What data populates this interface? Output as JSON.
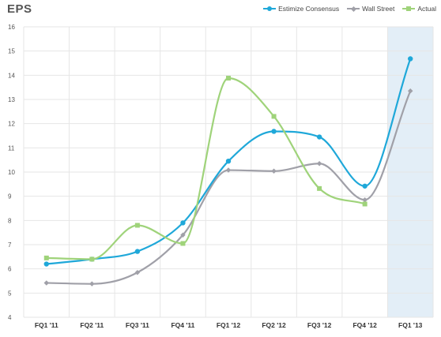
{
  "chart_data": {
    "type": "line",
    "title": "EPS",
    "categories": [
      "FQ1 '11",
      "FQ2 '11",
      "FQ3 '11",
      "FQ4 '11",
      "FQ1 '12",
      "FQ2 '12",
      "FQ3 '12",
      "FQ4 '12",
      "FQ1 '13"
    ],
    "ylim": [
      4,
      16
    ],
    "yticks": [
      4,
      5,
      6,
      7,
      8,
      9,
      10,
      11,
      12,
      13,
      14,
      15,
      16
    ],
    "grid": true,
    "legend_position": "top-right",
    "highlighted_category": "FQ1 '13",
    "series": [
      {
        "name": "Estimize Consensus",
        "color": "#1fa8d9",
        "marker": "circle",
        "values": [
          6.2,
          6.4,
          6.72,
          7.9,
          10.45,
          11.68,
          11.45,
          9.42,
          14.68
        ]
      },
      {
        "name": "Wall Street",
        "color": "#a0a0a8",
        "marker": "diamond",
        "values": [
          5.42,
          5.38,
          5.85,
          7.4,
          10.08,
          10.04,
          10.35,
          8.85,
          13.35
        ]
      },
      {
        "name": "Actual",
        "color": "#9fd37a",
        "marker": "square",
        "values": [
          6.45,
          6.4,
          7.8,
          7.05,
          13.88,
          12.3,
          9.32,
          8.68,
          null
        ]
      }
    ]
  }
}
